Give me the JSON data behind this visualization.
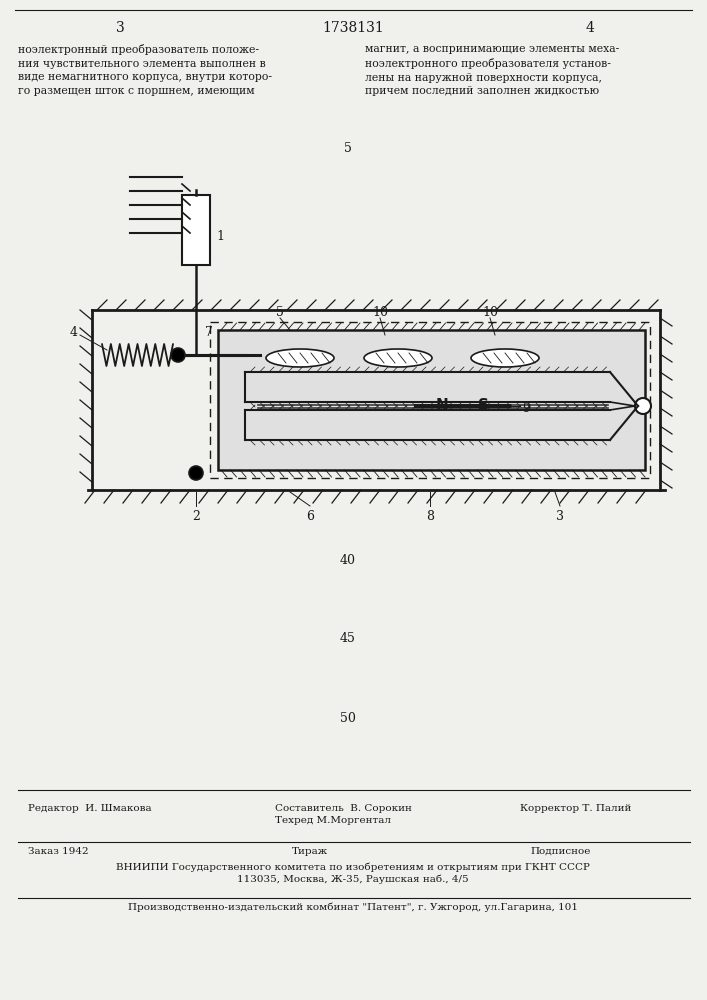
{
  "page_number_left": "3",
  "patent_number": "1738131",
  "page_number_right": "4",
  "text_left": "ноэлектронный преобразователь положе-\nния чувствительного элемента выполнен в\nвиде немагнитного корпуса, внутри которо-\nго размещен шток с поршнем, имеющим",
  "text_right": "магнит, а воспринимающие элементы меха-\nноэлектронного преобразователя установ-\nлены на наружной поверхности корпуса,\nпричем последний заполнен жидкостью",
  "line_number_5": "5",
  "line_number_40": "40",
  "line_number_45": "45",
  "line_number_50": "50",
  "editor_label": "Редактор  И. Шмакова",
  "author_label": "Составитель  В. Сорокин\nТехред М.Моргентал",
  "corrector_label": "Корректор Т. Палий",
  "order_label": "Заказ 1942",
  "tirazh_label": "Тираж",
  "podpisnoe_label": "Подписное",
  "vniiipi_label": "ВНИИПИ Государственного комитета по изобретениям и открытиям при ГКНТ СССР\n113035, Москва, Ж-35, Раушская наб., 4/5",
  "production_label": "Производственно-издательский комбинат \"Патент\", г. Ужгород, ул.Гагарина, 101",
  "bg_color": "#f0f0ec",
  "text_color": "#1a1a1a",
  "drawing_color": "#1a1a1a"
}
